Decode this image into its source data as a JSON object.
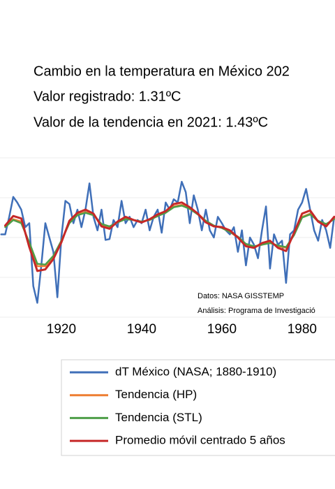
{
  "chart_data": {
    "type": "line",
    "title_lines": [
      "Cambio en la temperatura en México 202",
      "Valor registrado: 1.31ºC",
      "Valor de la tendencia en 2021: 1.43ºC"
    ],
    "annotations": [
      "Datos: NASA GISSTEMP",
      "Análisis: Programa de Investigació"
    ],
    "xlim": [
      1904.7,
      1988.2
    ],
    "xticks": [
      1920,
      1940,
      1960,
      1980
    ],
    "ylim": [
      -1,
      1
    ],
    "ygrid": [
      -1,
      -0.5,
      0,
      0.5,
      1
    ],
    "grid": true,
    "series": [
      {
        "name": "dT México (NASA; 1880-1910)",
        "color": "#3f6fb8",
        "width": 2.5,
        "x": [
          1905,
          1906,
          1907,
          1908,
          1909,
          1910,
          1911,
          1912,
          1913,
          1914,
          1915,
          1916,
          1917,
          1918,
          1919,
          1920,
          1921,
          1922,
          1923,
          1924,
          1925,
          1926,
          1927,
          1928,
          1929,
          1930,
          1931,
          1932,
          1933,
          1934,
          1935,
          1936,
          1937,
          1938,
          1939,
          1940,
          1941,
          1942,
          1943,
          1944,
          1945,
          1946,
          1947,
          1948,
          1949,
          1950,
          1951,
          1952,
          1953,
          1954,
          1955,
          1956,
          1957,
          1958,
          1959,
          1960,
          1961,
          1962,
          1963,
          1964,
          1965,
          1966,
          1967,
          1968,
          1969,
          1970,
          1971,
          1972,
          1973,
          1974,
          1975,
          1976,
          1977,
          1978,
          1979,
          1980,
          1981,
          1982,
          1983,
          1984,
          1985,
          1986,
          1987,
          1988
        ],
        "values": [
          0.04,
          0.04,
          0.26,
          0.51,
          0.44,
          0.35,
          0.13,
          0.18,
          -0.61,
          -0.82,
          -0.35,
          0.18,
          0,
          -0.18,
          -0.75,
          0,
          0.46,
          0.42,
          0.18,
          0.35,
          0.13,
          0.35,
          0.68,
          0.26,
          0.09,
          0.35,
          -0.03,
          -0.02,
          0.22,
          0.13,
          0.46,
          0.18,
          0.26,
          0.13,
          0.22,
          0.18,
          0.35,
          0.09,
          0.26,
          0.35,
          0.06,
          0.44,
          0.35,
          0.48,
          0.44,
          0.7,
          0.57,
          0.18,
          0.53,
          0.35,
          0.09,
          0.35,
          0.09,
          0,
          0.26,
          0.18,
          0.09,
          0.04,
          0.13,
          -0.18,
          0.09,
          -0.35,
          0,
          -0.09,
          -0.26,
          0.09,
          0.39,
          -0.39,
          0.04,
          -0.09,
          -0.04,
          -0.57,
          0.04,
          0.09,
          0.35,
          0.44,
          0.61,
          0.35,
          0.09,
          -0.04,
          0.22,
          0.09,
          -0.13,
          0.26
        ]
      },
      {
        "name": "Tendencia (HP)",
        "color": "#ed7d31",
        "width": 2.5,
        "x": [
          1906,
          1908,
          1910,
          1912,
          1914,
          1916,
          1918,
          1920,
          1922,
          1924,
          1926,
          1928,
          1930,
          1932,
          1934,
          1936,
          1938,
          1940,
          1942,
          1944,
          1946,
          1948,
          1950,
          1952,
          1954,
          1956,
          1958,
          1960,
          1962,
          1964,
          1966,
          1968,
          1970,
          1972,
          1974,
          1976,
          1978,
          1980,
          1982,
          1984,
          1986,
          1988
        ],
        "values": [
          0.14,
          0.23,
          0.2,
          -0.08,
          -0.36,
          -0.36,
          -0.24,
          -0.04,
          0.19,
          0.29,
          0.32,
          0.29,
          0.16,
          0.13,
          0.19,
          0.24,
          0.22,
          0.2,
          0.22,
          0.27,
          0.32,
          0.39,
          0.41,
          0.37,
          0.3,
          0.21,
          0.15,
          0.12,
          0.07,
          0,
          -0.09,
          -0.12,
          -0.09,
          -0.06,
          -0.11,
          -0.13,
          0.04,
          0.26,
          0.3,
          0.2,
          0.16,
          0.24
        ]
      },
      {
        "name": "Tendencia (STL)",
        "color": "#4e9e48",
        "width": 2.5,
        "x": [
          1906,
          1908,
          1910,
          1912,
          1914,
          1916,
          1918,
          1920,
          1922,
          1924,
          1926,
          1928,
          1930,
          1932,
          1934,
          1936,
          1938,
          1940,
          1942,
          1944,
          1946,
          1948,
          1950,
          1952,
          1954,
          1956,
          1958,
          1960,
          1962,
          1964,
          1966,
          1968,
          1970,
          1972,
          1974,
          1976,
          1978,
          1980,
          1982,
          1984,
          1986,
          1988
        ],
        "values": [
          0.13,
          0.22,
          0.18,
          -0.06,
          -0.33,
          -0.34,
          -0.23,
          -0.04,
          0.18,
          0.28,
          0.31,
          0.28,
          0.17,
          0.14,
          0.19,
          0.23,
          0.22,
          0.2,
          0.22,
          0.27,
          0.31,
          0.38,
          0.4,
          0.36,
          0.29,
          0.21,
          0.15,
          0.12,
          0.07,
          0.01,
          -0.08,
          -0.11,
          -0.09,
          -0.07,
          -0.1,
          -0.12,
          0.03,
          0.25,
          0.29,
          0.21,
          0.17,
          0.23
        ]
      },
      {
        "name": "Promedio móvil centrado 5 años",
        "color": "#c62828",
        "width": 3,
        "x": [
          1906,
          1908,
          1910,
          1912,
          1914,
          1916,
          1918,
          1920,
          1922,
          1924,
          1926,
          1928,
          1930,
          1932,
          1934,
          1936,
          1938,
          1940,
          1942,
          1944,
          1946,
          1948,
          1950,
          1952,
          1954,
          1956,
          1958,
          1960,
          1962,
          1964,
          1966,
          1968,
          1970,
          1972,
          1974,
          1976,
          1978,
          1980,
          1982,
          1984,
          1986,
          1988
        ],
        "values": [
          0.15,
          0.27,
          0.24,
          -0.12,
          -0.42,
          -0.4,
          -0.27,
          -0.06,
          0.21,
          0.31,
          0.35,
          0.3,
          0.14,
          0.11,
          0.2,
          0.26,
          0.22,
          0.19,
          0.23,
          0.29,
          0.33,
          0.42,
          0.44,
          0.38,
          0.3,
          0.19,
          0.14,
          0.13,
          0.09,
          0,
          -0.11,
          -0.13,
          -0.07,
          -0.04,
          -0.13,
          -0.17,
          0.06,
          0.3,
          0.34,
          0.2,
          0.14,
          0.26
        ]
      }
    ]
  }
}
